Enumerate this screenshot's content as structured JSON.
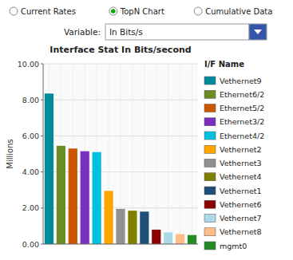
{
  "chart_data": {
    "type": "bar",
    "title": "Interface Stat In Bits/second",
    "ylabel": "Millions",
    "legend_title": "I/F Name",
    "categories": [
      "Vethernet9",
      "Ethernet6/2",
      "Ethernet5/2",
      "Ethernet3/2",
      "Ethernet4/2",
      "Vethernet2",
      "Vethernet3",
      "Vethernet4",
      "Vethernet1",
      "Vethernet6",
      "Vethernet7",
      "Vethernet8",
      "mgmt0"
    ],
    "values": [
      8.35,
      5.45,
      5.3,
      5.15,
      5.1,
      2.95,
      1.95,
      1.85,
      1.8,
      0.8,
      0.65,
      0.55,
      0.5
    ],
    "colors": [
      "#008B9A",
      "#6B8E23",
      "#CC5500",
      "#7B2FBE",
      "#00BFDF",
      "#FFA500",
      "#909090",
      "#808000",
      "#1F4E79",
      "#8B0000",
      "#ADD8E6",
      "#FFBB88",
      "#228B22"
    ],
    "ylim": [
      0,
      10.0
    ],
    "yticks": [
      {
        "value": 0.0,
        "label": "0.00"
      },
      {
        "value": 2.0,
        "label": "2.00"
      },
      {
        "value": 4.0,
        "label": "4.00"
      },
      {
        "value": 6.0,
        "label": "6.00"
      },
      {
        "value": 8.0,
        "label": "8.00"
      },
      {
        "value": 10.0,
        "label": "10.00"
      }
    ],
    "grid": true,
    "legend": "right",
    "tick_labels": "y"
  },
  "controls": {
    "radio_labels": [
      "Current Rates",
      "TopN Chart",
      "Cumulative Data"
    ],
    "radio_selected": 1,
    "variable_label": "Variable:",
    "variable_value": "In Bits/s"
  }
}
